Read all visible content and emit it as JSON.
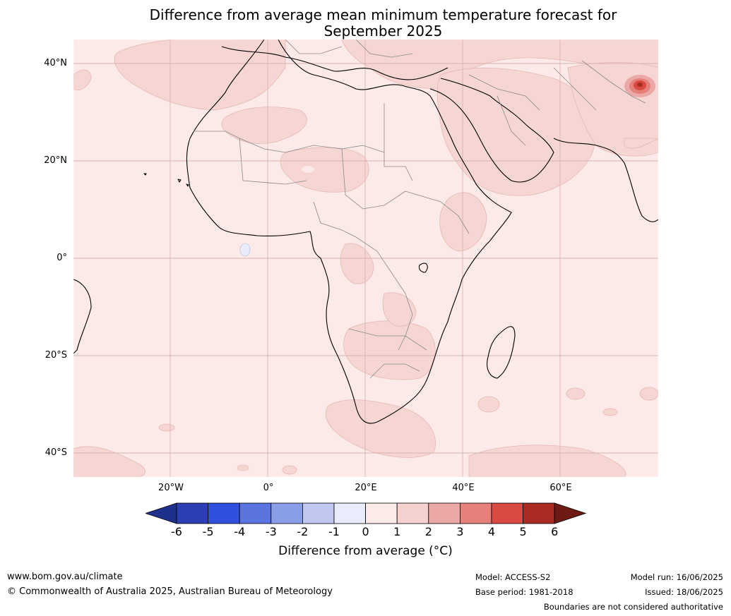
{
  "title_line1": "Difference from average mean minimum temperature forecast for",
  "title_line2": "September 2025",
  "lat_labels": [
    "40°N",
    "20°N",
    "0°",
    "20°S",
    "40°S"
  ],
  "lon_labels": [
    "20°W",
    "0°",
    "20°E",
    "40°E",
    "60°E"
  ],
  "colorbar": {
    "ticks": [
      "-6",
      "-5",
      "-4",
      "-3",
      "-2",
      "-1",
      "0",
      "1",
      "2",
      "3",
      "4",
      "5",
      "6"
    ],
    "colors": [
      "#1f2f8c",
      "#2b3fb3",
      "#3050e0",
      "#5a74e0",
      "#8a9ee8",
      "#c0c8f2",
      "#e9ecfa",
      "#fbeae8",
      "#f5d2d0",
      "#eaa9a6",
      "#e5807a",
      "#d84a42",
      "#a92b23",
      "#6e1a14"
    ],
    "title": "Difference from average (°C)"
  },
  "footer": {
    "site": "www.bom.gov.au/climate",
    "copyright": "© Commonwealth of Australia 2025, Australian Bureau of Meteorology",
    "model": "Model: ACCESS-S2",
    "base_period": "Base period: 1981-2018",
    "model_run": "Model run: 16/06/2025",
    "issued": "Issued: 18/06/2025",
    "disclaimer": "Boundaries are not considered authoritative"
  },
  "map_colors": {
    "ocean_base": "#fbeae8",
    "anomaly_1_2": "#f5d6d3",
    "anomaly_hot": "#c9423a",
    "anomaly_cold": "#e9ecfa"
  }
}
